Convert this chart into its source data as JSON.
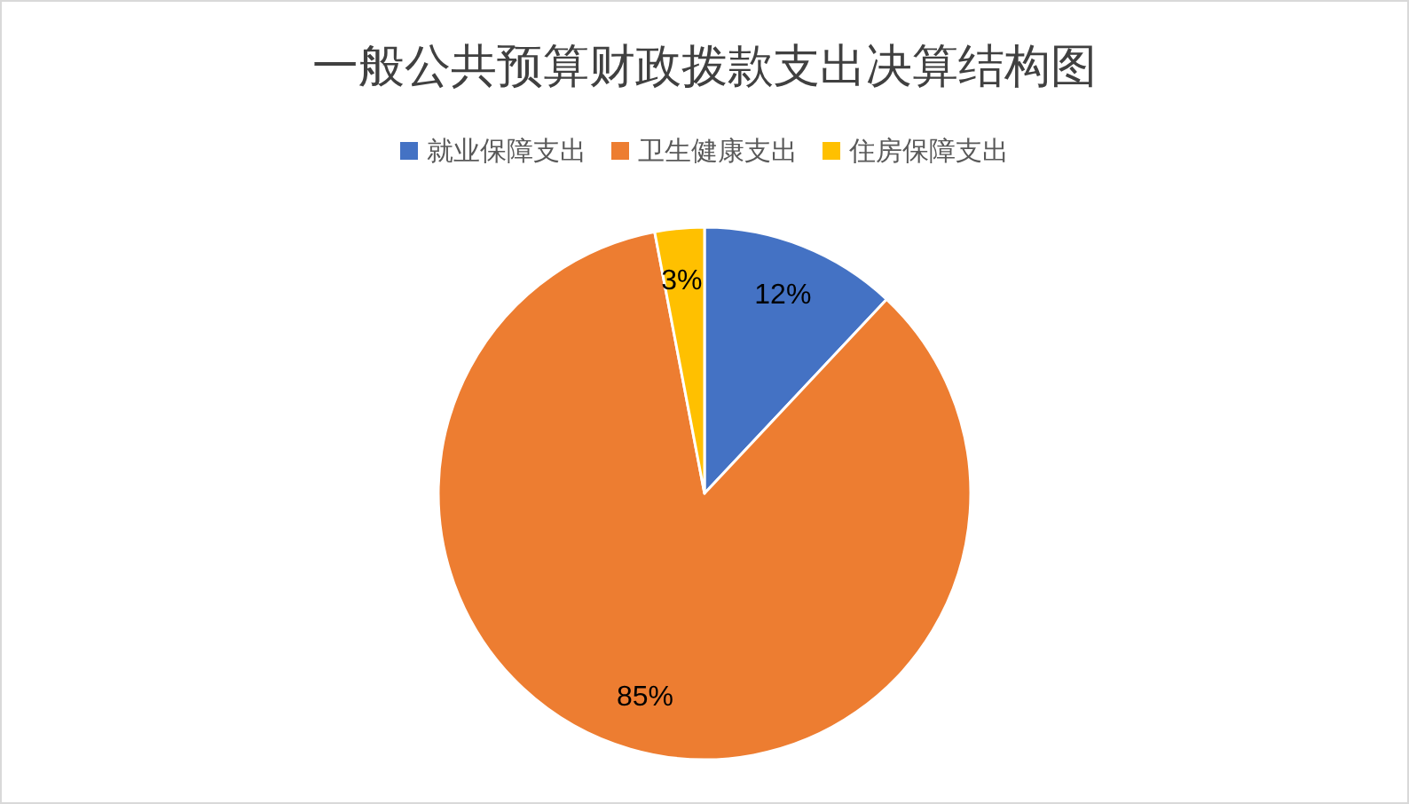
{
  "chart_data": {
    "type": "pie",
    "title": "一般公共预算财政拨款支出决算结构图",
    "categories": [
      "就业保障支出",
      "卫生健康支出",
      "住房保障支出"
    ],
    "values": [
      12,
      85,
      3
    ],
    "colors": [
      "#4472c4",
      "#ed7d31",
      "#ffc000"
    ],
    "value_labels": [
      "12%",
      "85%",
      "3%"
    ],
    "legend": "top"
  }
}
